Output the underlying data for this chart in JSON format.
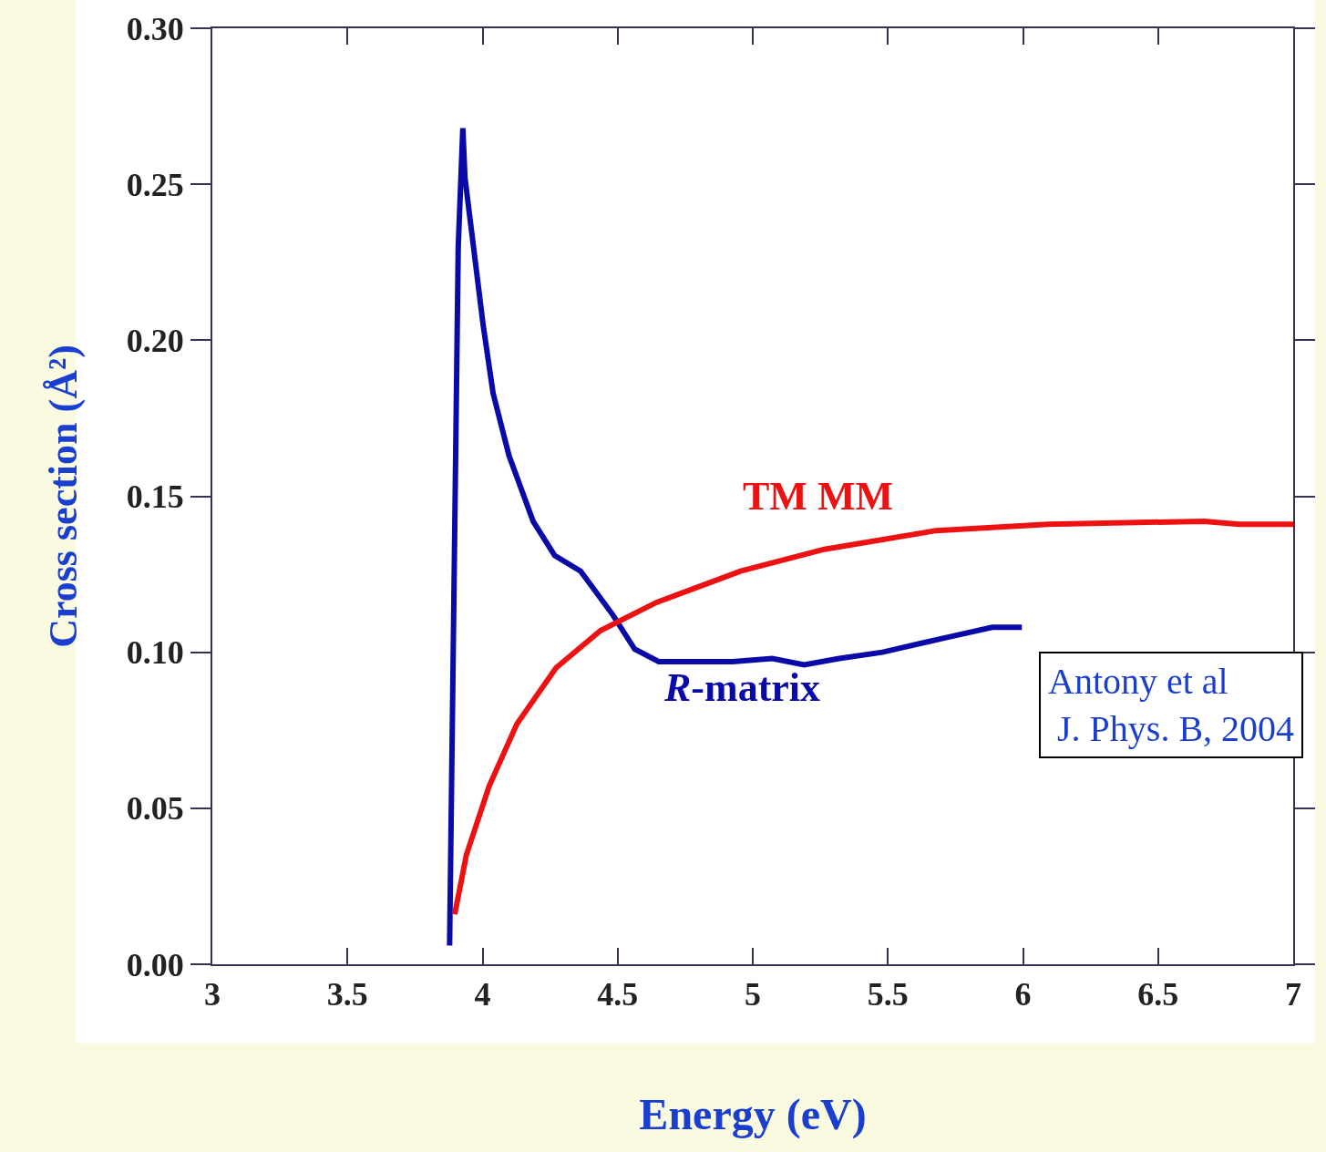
{
  "chart_data": {
    "type": "line",
    "xlabel": "Energy (eV)",
    "ylabel": "Cross section (Å²)",
    "xlim": [
      3,
      7
    ],
    "xticks": [
      3,
      3.5,
      4,
      4.5,
      5,
      5.5,
      6,
      6.5,
      7
    ],
    "ylim": [
      0,
      0.3
    ],
    "yticks": [
      {
        "value": 0,
        "label": "0.00"
      },
      {
        "value": 0.05,
        "label": "0.05"
      },
      {
        "value": 0.1,
        "label": "0.10"
      },
      {
        "value": 0.15,
        "label": "0.15"
      },
      {
        "value": 0.2,
        "label": "0.20"
      },
      {
        "value": 0.25,
        "label": "0.25"
      },
      {
        "value": 0.3,
        "label": "0.30"
      }
    ],
    "grid": false,
    "legend": false,
    "line_style": "solid",
    "series": [
      {
        "name": "R-matrix",
        "color": "#0a0aa8",
        "x": [
          3.878,
          3.9,
          3.91,
          3.927,
          3.935,
          4.002,
          4.039,
          4.098,
          4.187,
          4.267,
          4.363,
          4.482,
          4.563,
          4.652,
          4.925,
          5.072,
          5.19,
          5.32,
          5.48,
          5.73,
          5.886,
          5.996
        ],
        "values": [
          0.006,
          0.16,
          0.23,
          0.268,
          0.252,
          0.205,
          0.183,
          0.163,
          0.142,
          0.131,
          0.126,
          0.112,
          0.101,
          0.097,
          0.097,
          0.098,
          0.096,
          0.098,
          0.1,
          0.105,
          0.108,
          0.108
        ]
      },
      {
        "name": "TM MM",
        "color": "#ee1111",
        "x": [
          3.897,
          3.94,
          4.024,
          4.127,
          4.272,
          4.437,
          4.644,
          4.955,
          5.265,
          5.679,
          6.093,
          6.67,
          6.8,
          7.0
        ],
        "values": [
          0.016,
          0.035,
          0.057,
          0.077,
          0.095,
          0.107,
          0.116,
          0.126,
          0.133,
          0.139,
          0.141,
          0.142,
          0.141,
          0.141
        ]
      }
    ],
    "annotations": [
      "Antony et al\n J. Phys. B, 2004"
    ]
  }
}
